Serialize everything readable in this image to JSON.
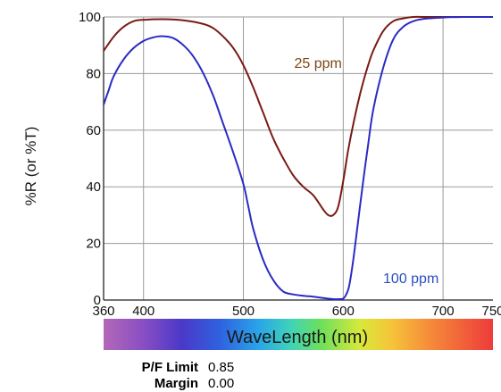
{
  "chart_data": {
    "type": "line",
    "xlabel": "WaveLength (nm)",
    "ylabel": "%R (or %T)",
    "xlim": [
      360,
      750
    ],
    "ylim": [
      0,
      100
    ],
    "x_ticks": [
      {
        "value": 360,
        "label": "360"
      },
      {
        "value": 400,
        "label": "400"
      },
      {
        "value": 500,
        "label": "500"
      },
      {
        "value": 600,
        "label": "600"
      },
      {
        "value": 700,
        "label": "700"
      },
      {
        "value": 750,
        "label": "750"
      }
    ],
    "y_ticks": [
      {
        "value": 0,
        "label": "0"
      },
      {
        "value": 20,
        "label": "20"
      },
      {
        "value": 40,
        "label": "40"
      },
      {
        "value": 60,
        "label": "60"
      },
      {
        "value": 80,
        "label": "80"
      },
      {
        "value": 100,
        "label": "100"
      }
    ],
    "grid": true,
    "series": [
      {
        "name": "25 ppm",
        "color": "#7a1a14",
        "x": [
          360,
          370,
          380,
          390,
          400,
          420,
          440,
          460,
          470,
          480,
          490,
          500,
          510,
          520,
          530,
          540,
          550,
          560,
          570,
          580,
          585,
          590,
          595,
          600,
          605,
          610,
          615,
          620,
          625,
          630,
          640,
          650,
          660,
          670,
          680,
          700,
          720,
          750
        ],
        "y": [
          88,
          93,
          96.5,
          98.5,
          99,
          99.2,
          98.8,
          97.5,
          96,
          93,
          89,
          83,
          75,
          66,
          57,
          50,
          44,
          40,
          37,
          32,
          30,
          30,
          33,
          42,
          53,
          62,
          70,
          77,
          83,
          88,
          95,
          98.5,
          99.5,
          100,
          100,
          100,
          100,
          100
        ]
      },
      {
        "name": "100 ppm",
        "color": "#2b2bc4",
        "x": [
          360,
          365,
          370,
          380,
          390,
          400,
          410,
          420,
          430,
          440,
          450,
          460,
          470,
          480,
          490,
          500,
          505,
          510,
          520,
          530,
          540,
          550,
          560,
          570,
          580,
          590,
          595,
          600,
          603,
          606,
          610,
          615,
          620,
          625,
          630,
          640,
          650,
          660,
          670,
          680,
          700,
          720,
          750
        ],
        "y": [
          69,
          74,
          79,
          85,
          89,
          91.5,
          92.8,
          93.2,
          92.5,
          90,
          86,
          80,
          72,
          62,
          52,
          41,
          33,
          25,
          14,
          7,
          3,
          2,
          1.5,
          1.2,
          0.7,
          0.3,
          0.3,
          0.5,
          2,
          5,
          14,
          28,
          42,
          55,
          67,
          82,
          92,
          96.5,
          98.5,
          99.3,
          99.8,
          100,
          100
        ]
      }
    ],
    "annotations": [
      {
        "text": "25 ppm",
        "x": 551,
        "y": 82,
        "color": "#7a4a14"
      },
      {
        "text": "100 ppm",
        "x": 640,
        "y": 6,
        "color": "#2b4fc4"
      }
    ]
  },
  "info": {
    "pf_limit_label": "P/F Limit",
    "pf_limit_value": "0.85",
    "margin_label": "Margin",
    "margin_value": "0.00"
  }
}
